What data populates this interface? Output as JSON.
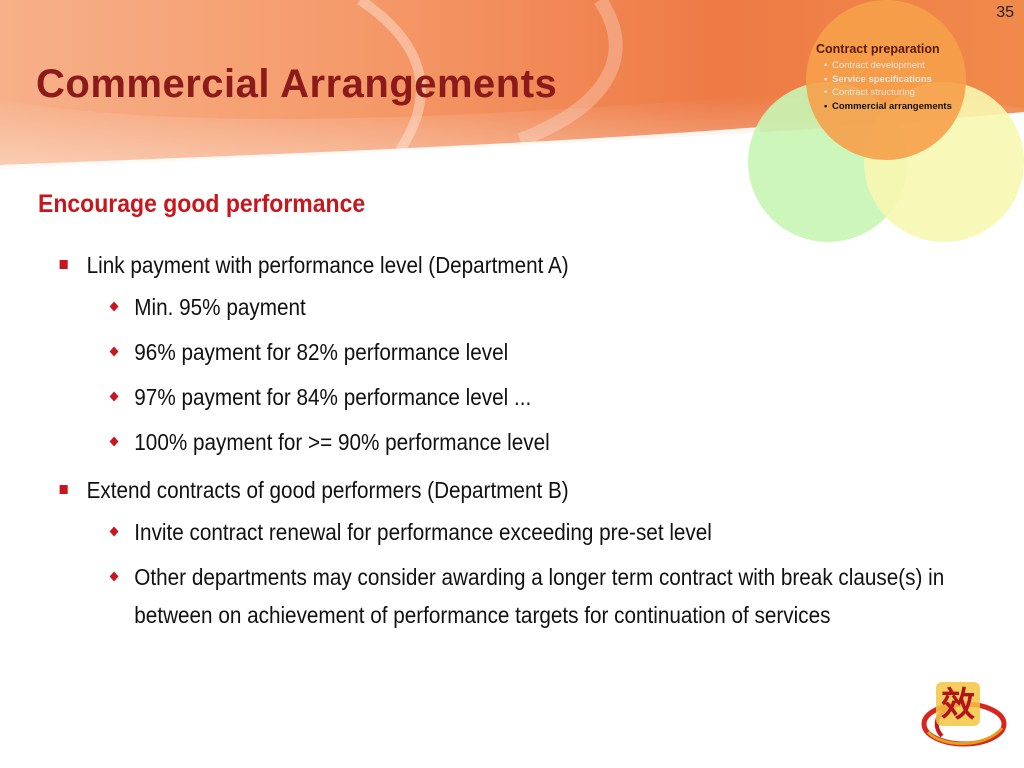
{
  "slide": {
    "page_number": "35",
    "title": "Commercial Arrangements",
    "subtitle": "Encourage good performance"
  },
  "nav_panel": {
    "heading": "Contract preparation",
    "items": [
      {
        "label": "Contract development"
      },
      {
        "label": "Service specifications"
      },
      {
        "label": "Contract structuring"
      },
      {
        "label": "Commercial arrangements"
      }
    ]
  },
  "content": {
    "sections": [
      {
        "text": "Link payment with performance level (Department A)",
        "sub": [
          "Min. 95% payment",
          "96% payment for 82% performance level",
          "97% payment for 84% performance level ...",
          "100% payment for >= 90% performance level"
        ]
      },
      {
        "text": "Extend contracts of good performers (Department B)",
        "sub": [
          "Invite contract renewal for performance exceeding pre-set level",
          "Other departments may consider awarding a longer term contract with break clause(s) in between on achievement of performance targets for continuation of services"
        ]
      }
    ]
  },
  "logo": {
    "glyph": "效"
  },
  "colors": {
    "title": "#8b1a1a",
    "accent": "#c8161d",
    "header_orange": "#f08a4b",
    "circle_orange": "#f6a04a",
    "circle_green": "#c8f5b4",
    "circle_yellow": "#f7f7b0"
  }
}
